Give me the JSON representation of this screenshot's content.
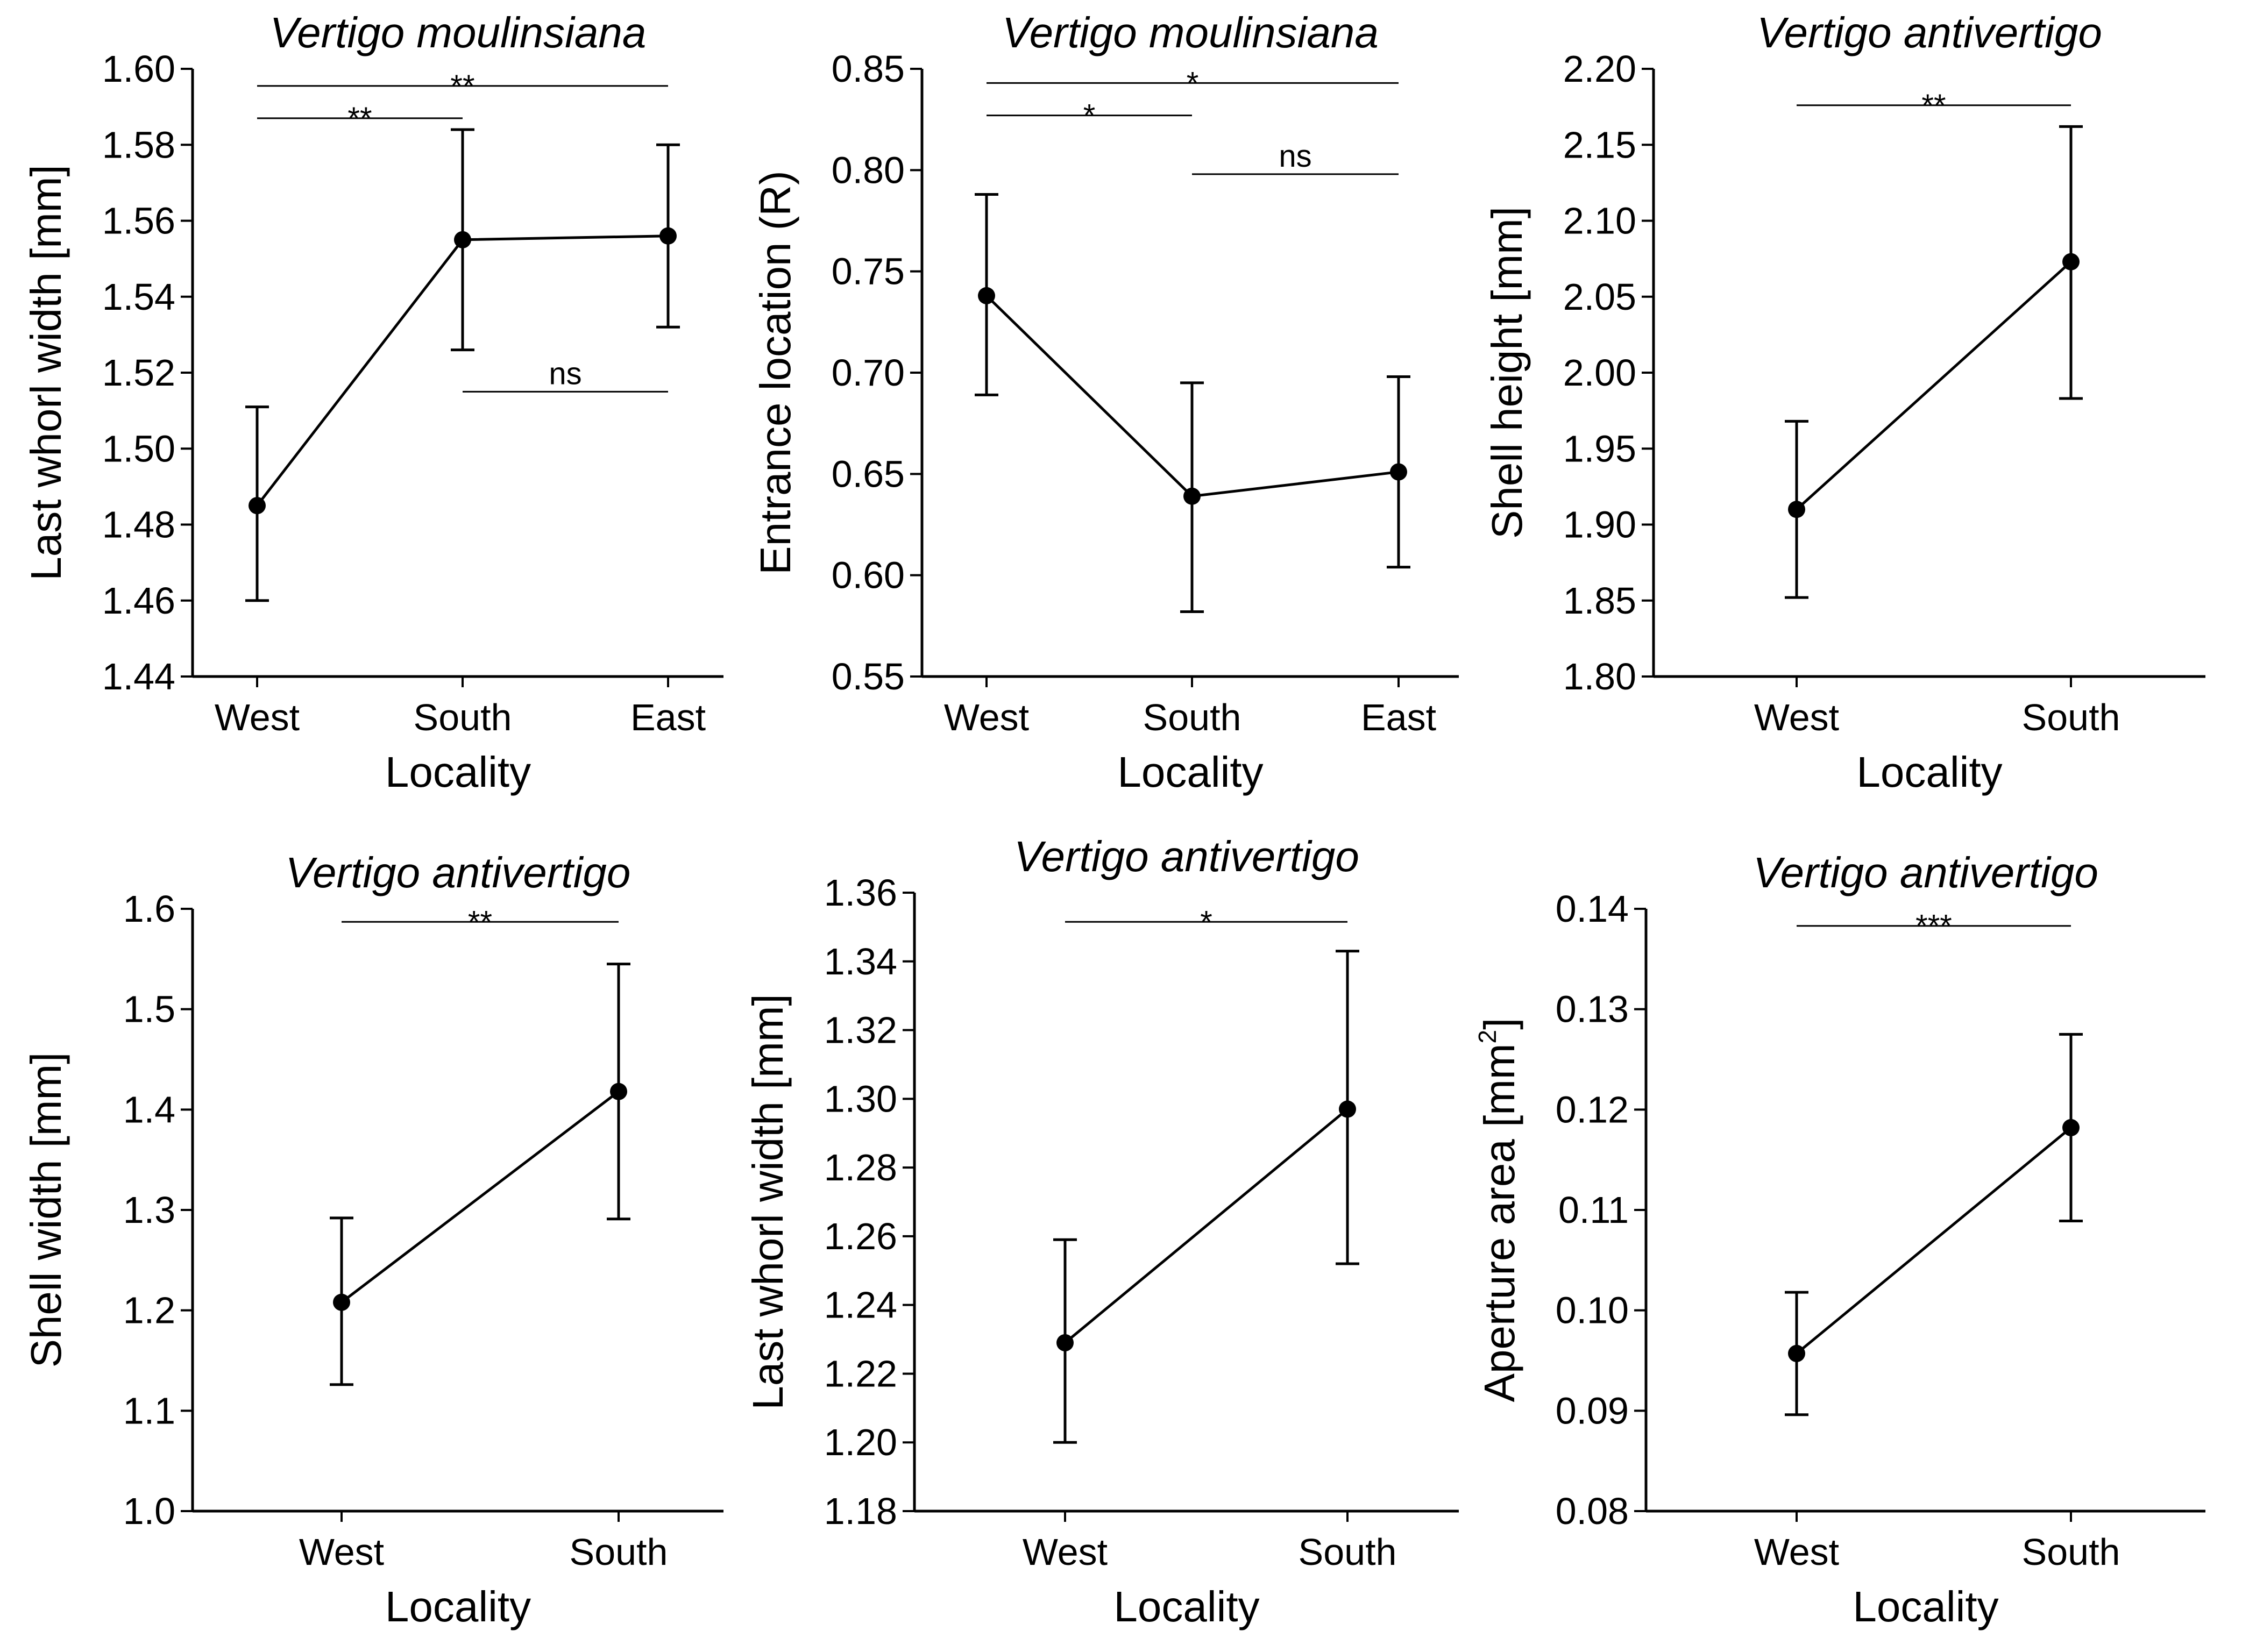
{
  "chart_data": [
    {
      "type": "line",
      "title": "Vertigo moulinsiana",
      "xlabel": "Locality",
      "ylabel": "Last whorl width [mm]",
      "categories": [
        "West",
        "South",
        "East"
      ],
      "ylim": [
        1.44,
        1.6
      ],
      "yticks": [
        1.44,
        1.46,
        1.48,
        1.5,
        1.52,
        1.54,
        1.56,
        1.58,
        1.6
      ],
      "ytick_labels": [
        "1.44",
        "1.46",
        "1.48",
        "1.50",
        "1.52",
        "1.54",
        "1.56",
        "1.58",
        "1.60"
      ],
      "series": [
        {
          "name": "mean",
          "values": [
            1.485,
            1.555,
            1.556
          ],
          "lower": [
            1.46,
            1.526,
            1.532
          ],
          "upper": [
            1.511,
            1.584,
            1.58
          ]
        }
      ],
      "significance": [
        {
          "from": 0,
          "to": 2,
          "y": 1.5955,
          "label": "**"
        },
        {
          "from": 0,
          "to": 1,
          "y": 1.587,
          "label": "**"
        },
        {
          "from": 1,
          "to": 2,
          "y": 1.515,
          "label": "ns"
        }
      ]
    },
    {
      "type": "line",
      "title": "Vertigo moulinsiana",
      "xlabel": "Locality",
      "ylabel": "Entrance location (R)",
      "categories": [
        "West",
        "South",
        "East"
      ],
      "ylim": [
        0.55,
        0.85
      ],
      "yticks": [
        0.55,
        0.6,
        0.65,
        0.7,
        0.75,
        0.8,
        0.85
      ],
      "ytick_labels": [
        "0.55",
        "0.60",
        "0.65",
        "0.70",
        "0.75",
        "0.80",
        "0.85"
      ],
      "series": [
        {
          "name": "mean",
          "values": [
            0.738,
            0.639,
            0.651
          ],
          "lower": [
            0.689,
            0.582,
            0.604
          ],
          "upper": [
            0.788,
            0.695,
            0.698
          ]
        }
      ],
      "significance": [
        {
          "from": 0,
          "to": 2,
          "y": 0.843,
          "label": "*"
        },
        {
          "from": 0,
          "to": 1,
          "y": 0.827,
          "label": "*"
        },
        {
          "from": 1,
          "to": 2,
          "y": 0.798,
          "label": "ns"
        }
      ]
    },
    {
      "type": "line",
      "title": "Vertigo antivertigo",
      "xlabel": "Locality",
      "ylabel": "Shell height [mm]",
      "categories": [
        "West",
        "South"
      ],
      "ylim": [
        1.8,
        2.2
      ],
      "yticks": [
        1.8,
        1.85,
        1.9,
        1.95,
        2.0,
        2.05,
        2.1,
        2.15,
        2.2
      ],
      "ytick_labels": [
        "1.80",
        "1.85",
        "1.90",
        "1.95",
        "2.00",
        "2.05",
        "2.10",
        "2.15",
        "2.20"
      ],
      "series": [
        {
          "name": "mean",
          "values": [
            1.91,
            2.073
          ],
          "lower": [
            1.852,
            1.983
          ],
          "upper": [
            1.968,
            2.162
          ]
        }
      ],
      "significance": [
        {
          "from": 0,
          "to": 1,
          "y": 2.176,
          "label": "**"
        }
      ]
    },
    {
      "type": "line",
      "title": "Vertigo antivertigo",
      "xlabel": "Locality",
      "ylabel": "Shell width [mm]",
      "categories": [
        "West",
        "South"
      ],
      "ylim": [
        1.0,
        1.6
      ],
      "yticks": [
        1.0,
        1.1,
        1.2,
        1.3,
        1.4,
        1.5,
        1.6
      ],
      "ytick_labels": [
        "1.0",
        "1.1",
        "1.2",
        "1.3",
        "1.4",
        "1.5",
        "1.6"
      ],
      "series": [
        {
          "name": "mean",
          "values": [
            1.208,
            1.418
          ],
          "lower": [
            1.126,
            1.291
          ],
          "upper": [
            1.292,
            1.545
          ]
        }
      ],
      "significance": [
        {
          "from": 0,
          "to": 1,
          "y": 1.587,
          "label": "**"
        }
      ]
    },
    {
      "type": "line",
      "title": "Vertigo antivertigo",
      "xlabel": "Locality",
      "ylabel": "Last whorl width [mm]",
      "categories": [
        "West",
        "South"
      ],
      "ylim": [
        1.18,
        1.36
      ],
      "yticks": [
        1.18,
        1.2,
        1.22,
        1.24,
        1.26,
        1.28,
        1.3,
        1.32,
        1.34,
        1.36
      ],
      "ytick_labels": [
        "1.18",
        "1.20",
        "1.22",
        "1.24",
        "1.26",
        "1.28",
        "1.30",
        "1.32",
        "1.34",
        "1.36"
      ],
      "series": [
        {
          "name": "mean",
          "values": [
            1.229,
            1.297
          ],
          "lower": [
            1.2,
            1.252
          ],
          "upper": [
            1.259,
            1.343
          ]
        }
      ],
      "significance": [
        {
          "from": 0,
          "to": 1,
          "y": 1.3515,
          "label": "*"
        }
      ]
    },
    {
      "type": "line",
      "title": "Vertigo antivertigo",
      "xlabel": "Locality",
      "ylabel": "Aperture area [mm",
      "ylabel_sup": "2",
      "ylabel_end": "]",
      "categories": [
        "West",
        "South"
      ],
      "ylim": [
        0.08,
        0.14
      ],
      "yticks": [
        0.08,
        0.09,
        0.1,
        0.11,
        0.12,
        0.13,
        0.14
      ],
      "ytick_labels": [
        "0.08",
        "0.09",
        "0.10",
        "0.11",
        "0.12",
        "0.13",
        "0.14"
      ],
      "series": [
        {
          "name": "mean",
          "values": [
            0.0957,
            0.1182
          ],
          "lower": [
            0.0896,
            0.1089
          ],
          "upper": [
            0.1018,
            0.1275
          ]
        }
      ],
      "significance": [
        {
          "from": 0,
          "to": 1,
          "y": 0.1383,
          "label": "***"
        }
      ]
    }
  ]
}
